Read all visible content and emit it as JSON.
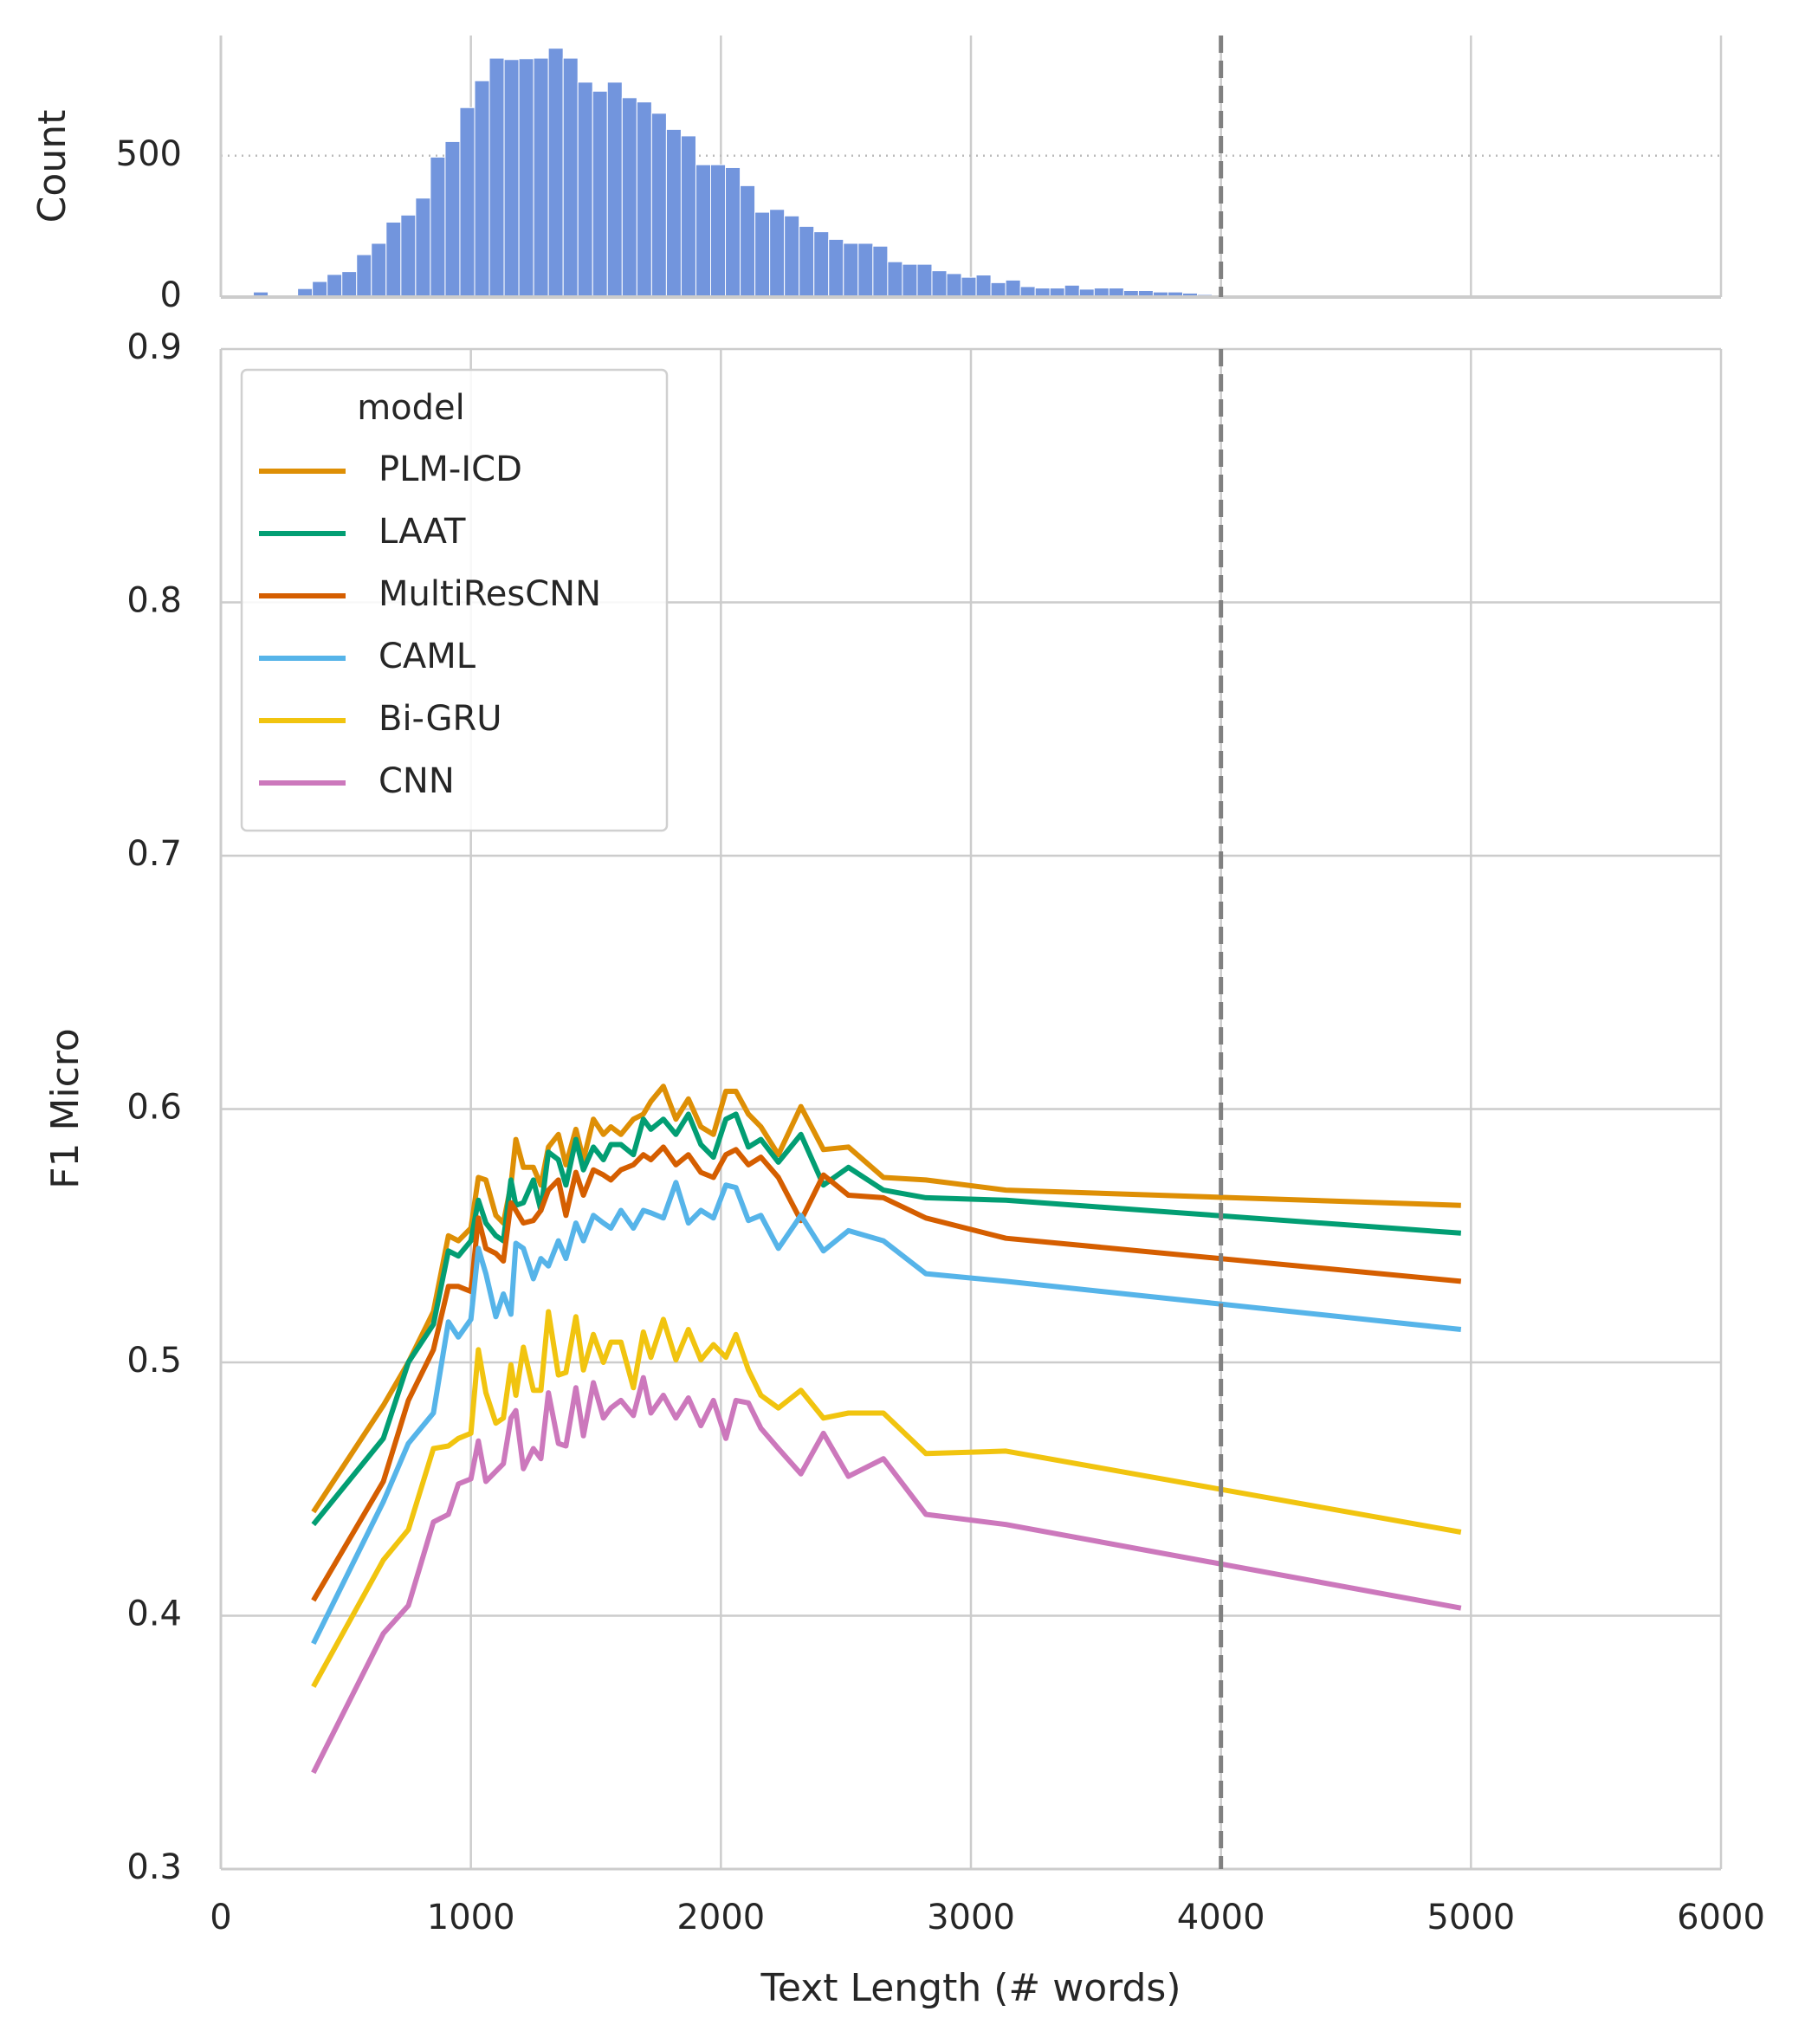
{
  "chart_data": [
    {
      "type": "histogram",
      "y_label": "Count",
      "color": "#7295dd",
      "bins": [
        130,
        189,
        248,
        307,
        366,
        425,
        484,
        543,
        602,
        661,
        720,
        779,
        838,
        897,
        956,
        1015,
        1074,
        1133,
        1192,
        1251,
        1310,
        1369,
        1428,
        1487,
        1546,
        1605,
        1664,
        1723,
        1782,
        1841,
        1900,
        1959,
        2018,
        2077,
        2136,
        2195,
        2254,
        2313,
        2372,
        2431,
        2490,
        2549,
        2608,
        2667,
        2726,
        2785,
        2844,
        2903,
        2962,
        3021,
        3080,
        3139,
        3198,
        3257,
        3316,
        3375,
        3434,
        3493,
        3552,
        3611,
        3670,
        3729,
        3788,
        3847,
        3906,
        3965,
        4024,
        4083,
        4142,
        4201,
        4260,
        4319,
        4378,
        4437,
        4496,
        4555
      ],
      "values": [
        18,
        0,
        0,
        30,
        55,
        80,
        90,
        150,
        190,
        265,
        290,
        350,
        495,
        550,
        670,
        765,
        845,
        840,
        843,
        845,
        880,
        845,
        760,
        728,
        760,
        705,
        690,
        650,
        593,
        570,
        468,
        468,
        458,
        394,
        300,
        310,
        287,
        250,
        231,
        204,
        190,
        190,
        180,
        125,
        116,
        116,
        93,
        83,
        70,
        78,
        51,
        60,
        37,
        32,
        32,
        42,
        28,
        32,
        32,
        23,
        23,
        18,
        18,
        14,
        9,
        4,
        3,
        2,
        2,
        1,
        1,
        1,
        0,
        1,
        1
      ],
      "xlim": [
        0,
        6000
      ],
      "ylim": [
        0,
        925
      ],
      "yticks": [
        0,
        500
      ],
      "grid": true,
      "vline": 4000
    },
    {
      "type": "line",
      "x_label": "Text Length (# words)",
      "y_label": "F1 Micro",
      "legend_title": "model",
      "legend": "upper left",
      "x": [
        370,
        650,
        750,
        850,
        910,
        950,
        1000,
        1030,
        1060,
        1100,
        1130,
        1160,
        1180,
        1210,
        1250,
        1280,
        1310,
        1350,
        1380,
        1420,
        1450,
        1490,
        1530,
        1560,
        1600,
        1650,
        1690,
        1720,
        1770,
        1820,
        1870,
        1920,
        1970,
        2020,
        2060,
        2110,
        2160,
        2230,
        2320,
        2410,
        2510,
        2650,
        2820,
        3140,
        4960
      ],
      "series": [
        {
          "name": "PLM-ICD",
          "color": "#de8f05",
          "values": [
            0.441,
            0.483,
            0.5,
            0.52,
            0.55,
            0.548,
            0.553,
            0.573,
            0.572,
            0.558,
            0.555,
            0.57,
            0.588,
            0.577,
            0.577,
            0.57,
            0.585,
            0.59,
            0.578,
            0.592,
            0.58,
            0.596,
            0.59,
            0.593,
            0.59,
            0.596,
            0.598,
            0.603,
            0.609,
            0.596,
            0.604,
            0.593,
            0.59,
            0.607,
            0.607,
            0.598,
            0.593,
            0.582,
            0.601,
            0.584,
            0.585,
            0.573,
            0.572,
            0.568,
            0.562
          ]
        },
        {
          "name": "LAAT",
          "color": "#029e73",
          "values": [
            0.436,
            0.47,
            0.5,
            0.515,
            0.544,
            0.542,
            0.548,
            0.564,
            0.555,
            0.55,
            0.548,
            0.572,
            0.562,
            0.563,
            0.572,
            0.56,
            0.583,
            0.58,
            0.57,
            0.588,
            0.576,
            0.585,
            0.58,
            0.586,
            0.586,
            0.582,
            0.596,
            0.592,
            0.596,
            0.59,
            0.598,
            0.586,
            0.581,
            0.596,
            0.598,
            0.585,
            0.588,
            0.579,
            0.59,
            0.57,
            0.577,
            0.568,
            0.565,
            0.564,
            0.551
          ]
        },
        {
          "name": "MultiResCNN",
          "color": "#d55e00",
          "values": [
            0.406,
            0.453,
            0.485,
            0.505,
            0.53,
            0.53,
            0.528,
            0.557,
            0.545,
            0.543,
            0.54,
            0.563,
            0.56,
            0.555,
            0.556,
            0.56,
            0.568,
            0.572,
            0.558,
            0.575,
            0.566,
            0.576,
            0.574,
            0.572,
            0.576,
            0.578,
            0.582,
            0.58,
            0.585,
            0.578,
            0.582,
            0.575,
            0.573,
            0.582,
            0.584,
            0.578,
            0.581,
            0.573,
            0.556,
            0.574,
            0.566,
            0.565,
            0.557,
            0.549,
            0.532
          ]
        },
        {
          "name": "CAML",
          "color": "#56b4e9",
          "values": [
            0.389,
            0.445,
            0.468,
            0.48,
            0.516,
            0.51,
            0.517,
            0.545,
            0.535,
            0.518,
            0.527,
            0.519,
            0.547,
            0.545,
            0.533,
            0.541,
            0.538,
            0.548,
            0.541,
            0.555,
            0.548,
            0.558,
            0.555,
            0.553,
            0.56,
            0.553,
            0.56,
            0.559,
            0.557,
            0.571,
            0.555,
            0.56,
            0.557,
            0.57,
            0.569,
            0.556,
            0.558,
            0.545,
            0.558,
            0.544,
            0.552,
            0.548,
            0.535,
            0.532,
            0.513
          ]
        },
        {
          "name": "Bi-GRU",
          "color": "#f1c40f",
          "values": [
            0.372,
            0.422,
            0.434,
            0.466,
            0.467,
            0.47,
            0.472,
            0.505,
            0.488,
            0.476,
            0.478,
            0.499,
            0.487,
            0.506,
            0.489,
            0.489,
            0.52,
            0.495,
            0.496,
            0.518,
            0.497,
            0.511,
            0.5,
            0.508,
            0.508,
            0.49,
            0.512,
            0.502,
            0.517,
            0.501,
            0.513,
            0.501,
            0.507,
            0.502,
            0.511,
            0.497,
            0.487,
            0.482,
            0.489,
            0.478,
            0.48,
            0.48,
            0.464,
            0.465,
            0.433
          ]
        },
        {
          "name": "CNN",
          "color": "#cc78bc",
          "values": [
            0.338,
            0.393,
            0.404,
            0.437,
            0.44,
            0.452,
            0.454,
            0.469,
            0.453,
            0.457,
            0.46,
            0.478,
            0.481,
            0.458,
            0.466,
            0.462,
            0.488,
            0.468,
            0.467,
            0.49,
            0.471,
            0.492,
            0.478,
            0.482,
            0.485,
            0.479,
            0.494,
            0.48,
            0.487,
            0.478,
            0.486,
            0.475,
            0.485,
            0.47,
            0.485,
            0.484,
            0.474,
            0.466,
            0.456,
            0.472,
            0.455,
            0.462,
            0.44,
            0.436,
            0.403
          ]
        }
      ],
      "xlim": [
        0,
        6000
      ],
      "xticks": [
        0,
        1000,
        2000,
        3000,
        4000,
        5000,
        6000
      ],
      "ylim": [
        0.3,
        0.9
      ],
      "yticks": [
        0.3,
        0.4,
        0.5,
        0.6,
        0.7,
        0.8,
        0.9
      ],
      "grid": true,
      "vline": 4000
    }
  ]
}
